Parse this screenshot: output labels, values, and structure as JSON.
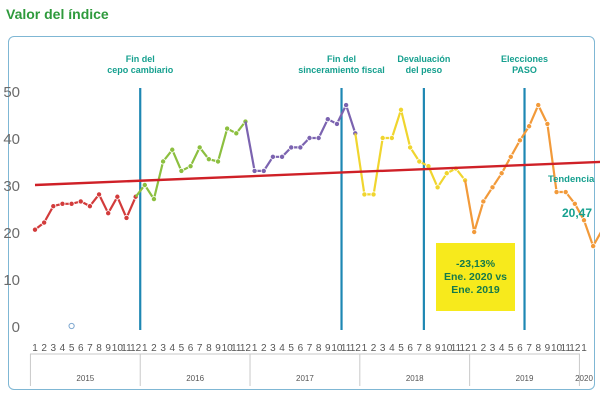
{
  "title": "Valor del índice",
  "chart_data": {
    "type": "line",
    "yticks": [
      0,
      10,
      20,
      30,
      40,
      50
    ],
    "ylim": [
      0,
      52
    ],
    "month_labels": [
      "1",
      "2",
      "3",
      "4",
      "5",
      "6",
      "7",
      "8",
      "9",
      "10",
      "11",
      "12"
    ],
    "years": [
      "2015",
      "2016",
      "2017",
      "2018",
      "2019",
      "2020"
    ],
    "last_year_months": [
      "1"
    ],
    "series": [
      {
        "color": "#d23b3b",
        "values": [
          20.5,
          22,
          25.5,
          26,
          26,
          26.5,
          25.5,
          28,
          24,
          27.5,
          23,
          27.5
        ]
      },
      {
        "color": "#8cbf3f",
        "values": [
          30,
          27,
          35,
          37.5,
          33,
          34,
          38,
          35.5,
          35,
          42,
          41,
          43.5
        ]
      },
      {
        "color": "#7b63b0",
        "values": [
          33,
          33,
          36,
          36,
          38,
          38,
          40,
          40,
          44,
          43,
          47,
          41
        ]
      },
      {
        "color": "#f0d52e",
        "values": [
          28,
          28,
          40,
          40,
          46,
          38,
          35,
          34,
          29.5,
          32.5,
          33.5,
          31
        ]
      },
      {
        "color": "#f29a3a",
        "values": [
          20,
          26.5,
          29.5,
          32.5,
          36,
          39.5,
          42.5,
          47,
          43,
          28.5,
          28.5,
          26,
          22.5,
          17,
          20.47
        ]
      }
    ],
    "stray_markers": [
      {
        "index": 4,
        "value": 0,
        "color": "#7fa8d0"
      }
    ],
    "trend": {
      "start": 30,
      "end": 35,
      "color": "#cf2027"
    },
    "events": [
      {
        "label_lines": [
          "Fin del",
          "cepo cambiario"
        ],
        "index": 11.5
      },
      {
        "label_lines": [
          "Fin del",
          "sinceramiento fiscal"
        ],
        "index": 33.5
      },
      {
        "label_lines": [
          "Devaluación",
          "del peso"
        ],
        "index": 42.5
      },
      {
        "label_lines": [
          "Elecciones",
          "PASO"
        ],
        "index": 53.5
      }
    ],
    "annotation": {
      "lines": [
        "-23,13%",
        "Ene. 2020 vs",
        "Ene. 2019"
      ]
    },
    "trend_label": "Tendencia",
    "last_value_label": "20,47"
  }
}
